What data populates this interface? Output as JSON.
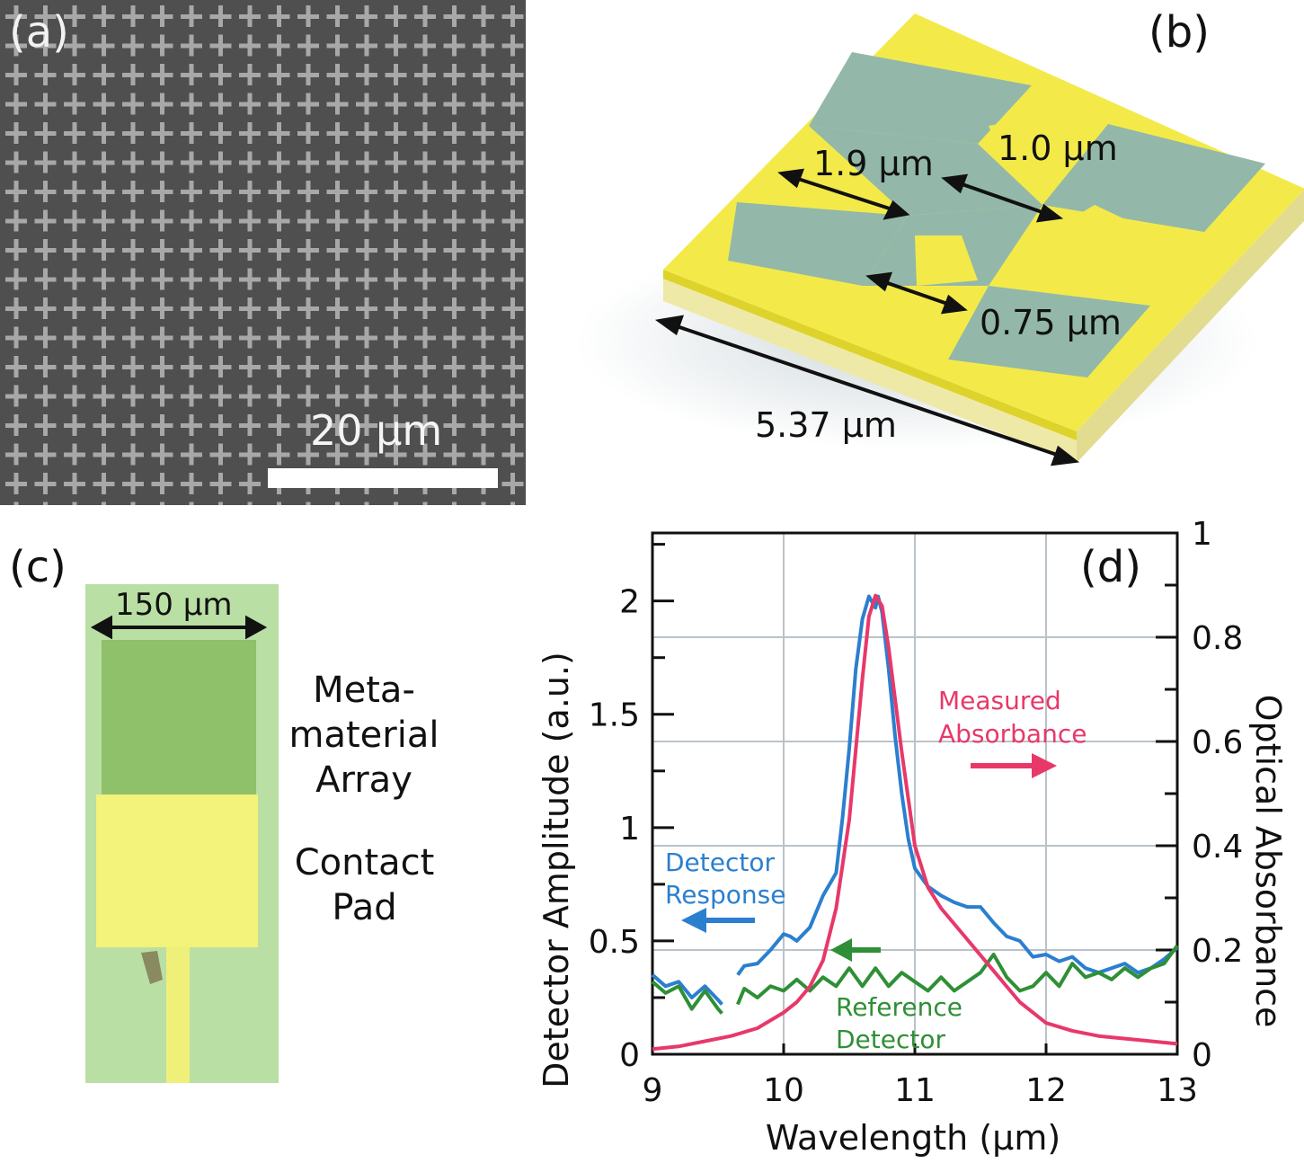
{
  "panels": {
    "a": {
      "label": "(a)",
      "scalebar": "20 μm"
    },
    "b": {
      "label": "(b)",
      "dimensions": [
        "1.9 μm",
        "1.0 μm",
        "0.75 μm",
        "5.37 μm"
      ]
    },
    "c": {
      "label": "(c)",
      "width": "150 μm",
      "labels": {
        "array": [
          "Meta-",
          "material",
          "Array"
        ],
        "pad": [
          "Contact",
          "Pad"
        ]
      }
    },
    "d": {
      "label": "(d)"
    }
  },
  "colors": {
    "gold": "#f3ea4a",
    "teal": "#93b8a9",
    "detector": "#2b7fcf",
    "reference": "#2f8f36",
    "absorbance": "#e8386a"
  },
  "chart_data": {
    "type": "line",
    "xlabel": "Wavelength (μm)",
    "ylabel": "Detector Amplitude (a.u.)",
    "y2label": "Optical Absorbance",
    "xlim": [
      9,
      13
    ],
    "ylim": [
      0,
      2.3
    ],
    "y2lim": [
      0,
      1
    ],
    "xticks": [
      "9",
      "10",
      "11",
      "12",
      "13"
    ],
    "yticks": [
      "0",
      "0.5",
      "1",
      "1.5",
      "2"
    ],
    "y2ticks": [
      "0",
      "0.2",
      "0.4",
      "0.6",
      "0.8",
      "1"
    ],
    "grid": true,
    "annotations": {
      "detector": [
        "Detector",
        "Response"
      ],
      "reference": [
        "Reference",
        "Detector"
      ],
      "absorbance": [
        "Measured",
        "Absorbance"
      ]
    },
    "series": [
      {
        "axis": "left",
        "color": "#2b7fcf",
        "x": [
          9.0,
          9.1,
          9.2,
          9.3,
          9.4,
          9.5,
          9.53,
          9.65,
          9.7,
          9.8,
          9.9,
          10.0,
          10.05,
          10.1,
          10.2,
          10.3,
          10.4,
          10.45,
          10.5,
          10.55,
          10.6,
          10.65,
          10.7,
          10.72,
          10.75,
          10.8,
          10.85,
          10.9,
          10.95,
          11.0,
          11.05,
          11.1,
          11.15,
          11.2,
          11.3,
          11.4,
          11.5,
          11.6,
          11.7,
          11.8,
          11.9,
          12.0,
          12.1,
          12.2,
          12.3,
          12.4,
          12.5,
          12.6,
          12.7,
          12.8,
          12.9,
          13.0
        ],
        "y": [
          0.35,
          0.3,
          0.32,
          0.25,
          0.3,
          0.24,
          0.22,
          0.35,
          0.39,
          0.4,
          0.46,
          0.53,
          0.52,
          0.5,
          0.56,
          0.7,
          0.8,
          1.05,
          1.35,
          1.7,
          1.92,
          2.02,
          1.97,
          2.02,
          1.95,
          1.7,
          1.4,
          1.15,
          0.95,
          0.82,
          0.78,
          0.74,
          0.72,
          0.7,
          0.67,
          0.65,
          0.65,
          0.58,
          0.52,
          0.5,
          0.43,
          0.44,
          0.41,
          0.43,
          0.38,
          0.36,
          0.38,
          0.4,
          0.36,
          0.38,
          0.42,
          0.47
        ]
      },
      {
        "axis": "left",
        "color": "#2f8f36",
        "x": [
          9.0,
          9.1,
          9.2,
          9.3,
          9.4,
          9.5,
          9.53,
          9.65,
          9.7,
          9.8,
          9.9,
          10.0,
          10.1,
          10.2,
          10.3,
          10.4,
          10.5,
          10.6,
          10.7,
          10.8,
          10.9,
          11.0,
          11.1,
          11.2,
          11.3,
          11.4,
          11.5,
          11.6,
          11.7,
          11.8,
          11.9,
          12.0,
          12.1,
          12.2,
          12.3,
          12.4,
          12.5,
          12.6,
          12.7,
          12.8,
          12.9,
          13.0
        ],
        "y": [
          0.32,
          0.27,
          0.3,
          0.2,
          0.28,
          0.2,
          0.18,
          0.22,
          0.29,
          0.25,
          0.3,
          0.28,
          0.33,
          0.28,
          0.34,
          0.3,
          0.38,
          0.3,
          0.38,
          0.3,
          0.36,
          0.32,
          0.28,
          0.34,
          0.28,
          0.32,
          0.36,
          0.44,
          0.34,
          0.28,
          0.3,
          0.36,
          0.3,
          0.4,
          0.34,
          0.36,
          0.33,
          0.38,
          0.34,
          0.38,
          0.4,
          0.48
        ]
      },
      {
        "axis": "right",
        "color": "#e8386a",
        "x": [
          9.0,
          9.2,
          9.4,
          9.6,
          9.8,
          10.0,
          10.1,
          10.2,
          10.3,
          10.4,
          10.5,
          10.6,
          10.65,
          10.7,
          10.75,
          10.8,
          10.9,
          11.0,
          11.1,
          11.2,
          11.3,
          11.4,
          11.5,
          11.6,
          11.7,
          11.8,
          11.9,
          12.0,
          12.2,
          12.4,
          12.6,
          12.8,
          13.0
        ],
        "y": [
          0.01,
          0.015,
          0.025,
          0.035,
          0.05,
          0.08,
          0.1,
          0.13,
          0.18,
          0.28,
          0.45,
          0.72,
          0.84,
          0.88,
          0.86,
          0.78,
          0.58,
          0.4,
          0.32,
          0.28,
          0.25,
          0.22,
          0.19,
          0.16,
          0.13,
          0.1,
          0.08,
          0.06,
          0.045,
          0.035,
          0.03,
          0.025,
          0.02
        ]
      }
    ]
  }
}
